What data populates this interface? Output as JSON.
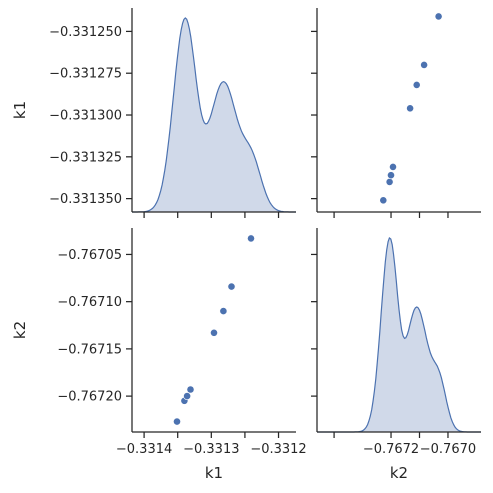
{
  "chart_data": {
    "type": "scatter",
    "subtype": "pairplot",
    "variables": [
      "k1",
      "k2"
    ],
    "color": "#4c72b0",
    "fill_color": "#d0d9e9",
    "points": {
      "k1": [
        -0.331351,
        -0.33134,
        -0.331336,
        -0.331331,
        -0.331296,
        -0.331282,
        -0.33127,
        -0.331241
      ],
      "k2": [
        -0.767227,
        -0.767205,
        -0.7672,
        -0.767193,
        -0.767133,
        -0.76711,
        -0.767084,
        -0.767033
      ]
    },
    "axes": {
      "k1": {
        "label": "k1",
        "ylim": [
          -0.331358,
          -0.331236
        ],
        "yticks": [
          -0.33125,
          -0.331275,
          -0.3313,
          -0.331325,
          -0.33135
        ],
        "ytick_labels": [
          "−0.331250",
          "−0.331275",
          "−0.331300",
          "−0.331325",
          "−0.331350"
        ],
        "xlim": [
          -0.331418,
          -0.331174
        ],
        "xticks": [
          -0.3314,
          -0.3313,
          -0.3312
        ],
        "xtick_labels": [
          "−0.3314",
          "−0.3313",
          "−0.3312"
        ],
        "minor_xticks": [
          -0.33135,
          -0.33125
        ]
      },
      "k2": {
        "label": "k2",
        "ylim": [
          -0.767238,
          -0.767022
        ],
        "yticks": [
          -0.76705,
          -0.7671,
          -0.76715,
          -0.7672
        ],
        "ytick_labels": [
          "−0.76705",
          "−0.76710",
          "−0.76715",
          "−0.76720"
        ],
        "xlim": [
          -0.76746,
          -0.766884
        ],
        "xticks": [
          -0.7672,
          -0.767
        ],
        "xtick_labels": [
          "−0.7672",
          "−0.7670"
        ],
        "minor_xticks": [
          -0.7674,
          -0.7671
        ]
      }
    },
    "diagonal": "kde",
    "offdiagonal": "scatter",
    "grid": false,
    "legend": null
  }
}
